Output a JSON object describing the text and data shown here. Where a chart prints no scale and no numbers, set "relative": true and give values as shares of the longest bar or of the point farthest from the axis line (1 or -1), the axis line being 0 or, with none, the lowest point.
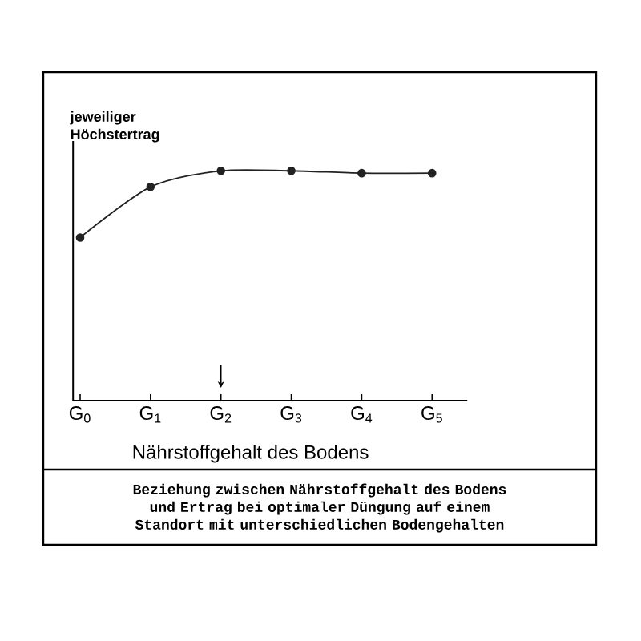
{
  "chart_data": {
    "type": "line",
    "relative": true,
    "categories": [
      "G$_{0}$",
      "G$_{1}$",
      "G$_{2}$",
      "G$_{3}$",
      "G$_{4}$",
      "G$_{5}$"
    ],
    "series": [
      {
        "color": "#222222",
        "values": [
          0.71,
          0.93,
          1.0,
          1.0,
          0.99,
          0.99
        ]
      }
    ],
    "xlabel": "Nährstoffgehalt des Bodens",
    "ylabel": "jeweiliger Höchstertrag",
    "annotations": [
      "Beziehung zwischen Nährstoffgehalt des Bodens und Ertrag bei optimaler Düngung auf einem Standort mit unterschiedlichen Bodengehalten"
    ],
    "marker": "circle",
    "line_style": "solid",
    "tick_labels": "x"
  }
}
